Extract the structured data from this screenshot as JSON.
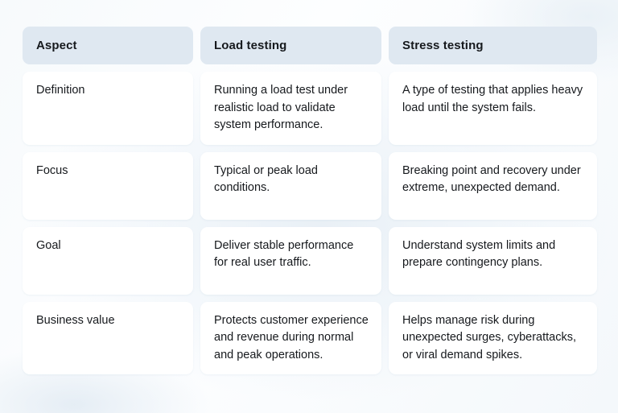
{
  "colors": {
    "header_bg": "#dfe8f1",
    "cell_bg": "#ffffff",
    "text": "#16191d",
    "page_bg_tint": "#e9f0f6"
  },
  "table": {
    "headers": [
      "Aspect",
      "Load testing",
      "Stress testing"
    ],
    "rows": [
      {
        "aspect": "Definition",
        "load": "Running a load test under realistic load to validate system performance.",
        "stress": "A type of testing that applies heavy load until the system fails."
      },
      {
        "aspect": "Focus",
        "load": "Typical or peak load conditions.",
        "stress": "Breaking point and recovery under extreme, unexpected demand."
      },
      {
        "aspect": "Goal",
        "load": "Deliver stable performance for real user traffic.",
        "stress": "Understand system limits and prepare contingency plans."
      },
      {
        "aspect": "Business value",
        "load": "Protects customer experience and revenue during normal and peak operations.",
        "stress": "Helps manage risk during unexpected surges, cyberattacks, or viral demand spikes."
      }
    ]
  },
  "chart_data": {
    "type": "table",
    "title": "",
    "columns": [
      "Aspect",
      "Load testing",
      "Stress testing"
    ],
    "rows": [
      [
        "Definition",
        "Running a load test under realistic load to validate system performance.",
        "A type of testing that applies heavy load until the system fails."
      ],
      [
        "Focus",
        "Typical or peak load conditions.",
        "Breaking point and recovery under extreme, unexpected demand."
      ],
      [
        "Goal",
        "Deliver stable performance for real user traffic.",
        "Understand system limits and prepare contingency plans."
      ],
      [
        "Business value",
        "Protects customer experience and revenue during normal and peak operations.",
        "Helps manage risk during unexpected surges, cyberattacks, or viral demand spikes."
      ]
    ],
    "layout": {
      "header_background": "#dfe8f1",
      "cell_background": "#ffffff",
      "grid": "off",
      "style": "rounded-card-table"
    }
  }
}
